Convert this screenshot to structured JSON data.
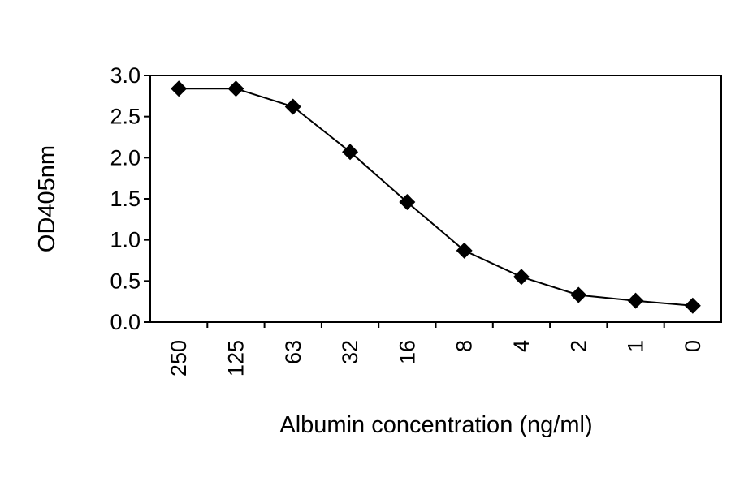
{
  "chart_data": {
    "type": "line",
    "title": "",
    "xlabel": "Albumin concentration (ng/ml)",
    "ylabel": "OD405nm",
    "categories": [
      "250",
      "125",
      "63",
      "32",
      "16",
      "8",
      "4",
      "2",
      "1",
      "0"
    ],
    "series": [
      {
        "values": [
          2.84,
          2.84,
          2.62,
          2.07,
          1.46,
          0.87,
          0.55,
          0.33,
          0.26,
          0.2
        ],
        "marker": "diamond",
        "color": "#000000"
      }
    ],
    "ylim": [
      0,
      3
    ],
    "yticks": [
      "0.0",
      "0.5",
      "1.0",
      "1.5",
      "2.0",
      "2.5",
      "3.0"
    ],
    "grid": false,
    "legend": "none"
  }
}
